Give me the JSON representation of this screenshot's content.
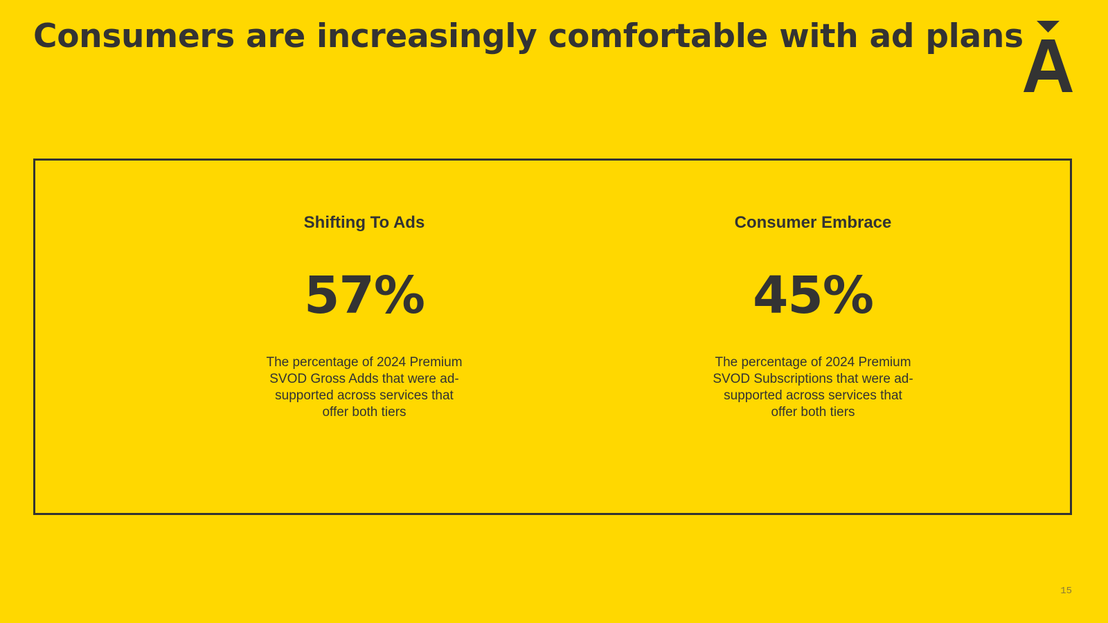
{
  "slide": {
    "title": "Consumers are increasingly comfortable with ad plans",
    "page_number": "15",
    "background_color": "#FFD800",
    "text_color": "#333333"
  },
  "logo": {
    "icon": "arrow-a-logo-icon"
  },
  "stats": [
    {
      "heading": "Shifting To Ads",
      "value": "57%",
      "description": "The percentage of 2024 Premium SVOD Gross Adds that were ad-supported across services that offer both tiers"
    },
    {
      "heading": "Consumer Embrace",
      "value": "45%",
      "description": "The percentage of 2024 Premium SVOD Subscriptions that were ad-supported across services that offer both tiers"
    }
  ]
}
